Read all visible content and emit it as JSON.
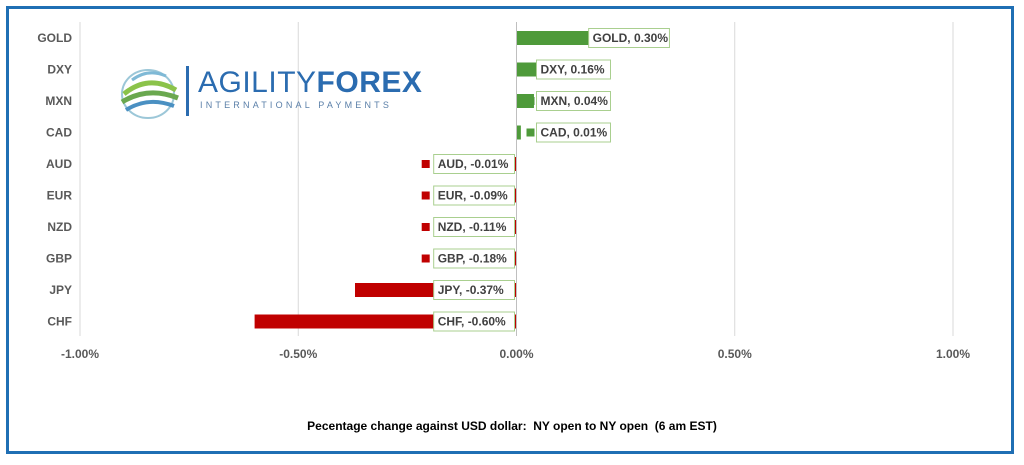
{
  "chart_data": {
    "type": "bar",
    "orientation": "horizontal",
    "categories": [
      "GOLD",
      "DXY",
      "MXN",
      "CAD",
      "AUD",
      "EUR",
      "NZD",
      "GBP",
      "JPY",
      "CHF"
    ],
    "values": [
      0.3,
      0.16,
      0.04,
      0.01,
      -0.01,
      -0.09,
      -0.11,
      -0.18,
      -0.37,
      -0.6
    ],
    "data_labels": [
      "GOLD, 0.30%",
      "DXY, 0.16%",
      "MXN, 0.04%",
      "CAD, 0.01%",
      "AUD, -0.01%",
      "EUR, -0.09%",
      "NZD, -0.11%",
      "GBP, -0.18%",
      "JPY, -0.37%",
      "CHF, -0.60%"
    ],
    "xlim": [
      -1.0,
      1.0
    ],
    "x_ticks": [
      -1.0,
      -0.5,
      0.0,
      0.5,
      1.0
    ],
    "x_tick_labels": [
      "-1.00%",
      "-0.50%",
      "0.00%",
      "0.50%",
      "1.00%"
    ],
    "xlabel": "Pecentage change against USD dollar:  NY open to NY open  (6 am EST)",
    "grid": "vertical",
    "colors": {
      "positive": "#4e9a3a",
      "negative": "#c00000",
      "label_border_positive": "#4e9a3a",
      "label_border_negative": "#c00000",
      "frame": "#1f6fb4"
    }
  },
  "logo": {
    "word_part1": "AGILITY",
    "word_part2": "FOREX",
    "tagline": "INTERNATIONAL PAYMENTS",
    "icon": "globe-swoosh-icon"
  }
}
